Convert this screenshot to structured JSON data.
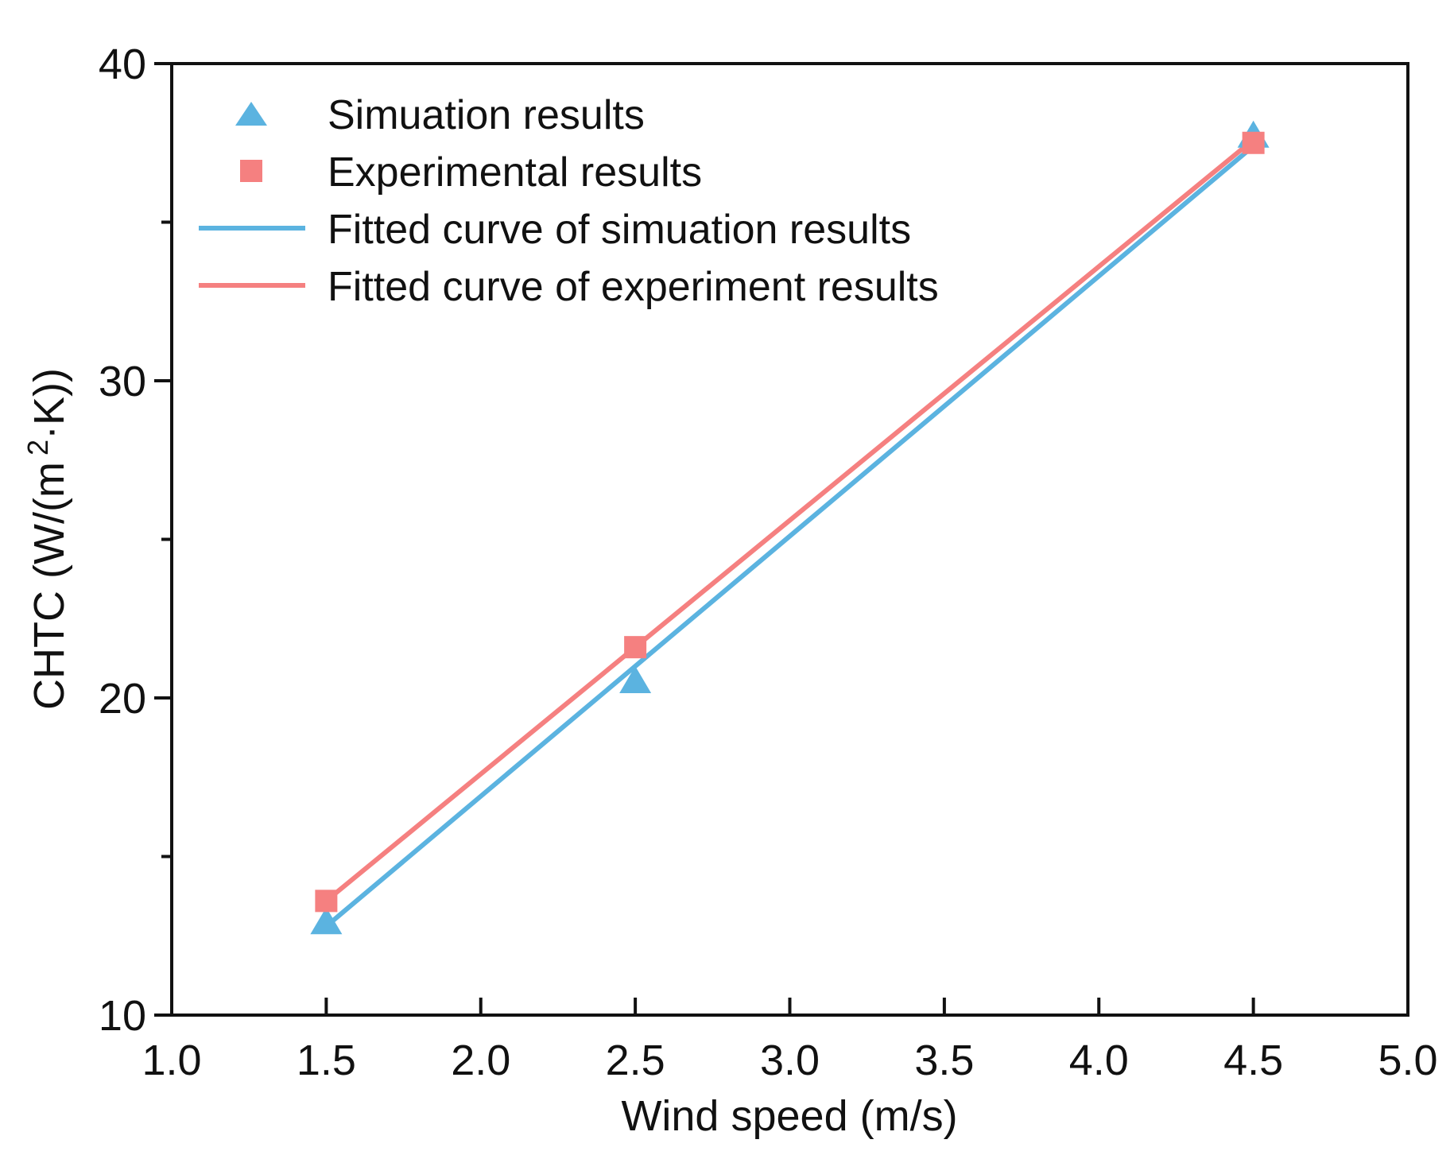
{
  "chart_data": {
    "type": "scatter",
    "title": "",
    "xlabel": "Wind speed (m/s)",
    "ylabel_parts": {
      "prefix": "CHTC (W/(m",
      "superscript": "2",
      "suffix": "·K))"
    },
    "xlim": [
      1.0,
      5.0
    ],
    "ylim": [
      10,
      40
    ],
    "xticks": [
      1.0,
      1.5,
      2.0,
      2.5,
      3.0,
      3.5,
      4.0,
      4.5,
      5.0
    ],
    "xtick_labels": [
      "1.0",
      "1.5",
      "2.0",
      "2.5",
      "3.0",
      "3.5",
      "4.0",
      "4.5",
      "5.0"
    ],
    "yticks_major": [
      10,
      20,
      30,
      40
    ],
    "ytick_labels": [
      "10",
      "20",
      "30",
      "40"
    ],
    "yticks_minor": [
      15,
      25,
      35
    ],
    "grid": false,
    "legend_position": "top-left",
    "series": [
      {
        "name": "Simuation results",
        "kind": "marker",
        "marker": "triangle",
        "color": "#5bb3e0",
        "x": [
          1.5,
          2.5,
          4.5
        ],
        "y": [
          12.9,
          20.5,
          37.7
        ]
      },
      {
        "name": "Experimental results",
        "kind": "marker",
        "marker": "square",
        "color": "#f58080",
        "x": [
          1.5,
          2.5,
          4.5
        ],
        "y": [
          13.6,
          21.6,
          37.5
        ]
      },
      {
        "name": "Fitted curve of simuation results",
        "kind": "line",
        "color": "#5bb3e0",
        "x": [
          1.5,
          4.5
        ],
        "y": [
          12.8,
          37.4
        ]
      },
      {
        "name": "Fitted curve of experiment results",
        "kind": "line",
        "color": "#f58080",
        "x": [
          1.5,
          4.5
        ],
        "y": [
          13.6,
          37.6
        ]
      }
    ]
  }
}
